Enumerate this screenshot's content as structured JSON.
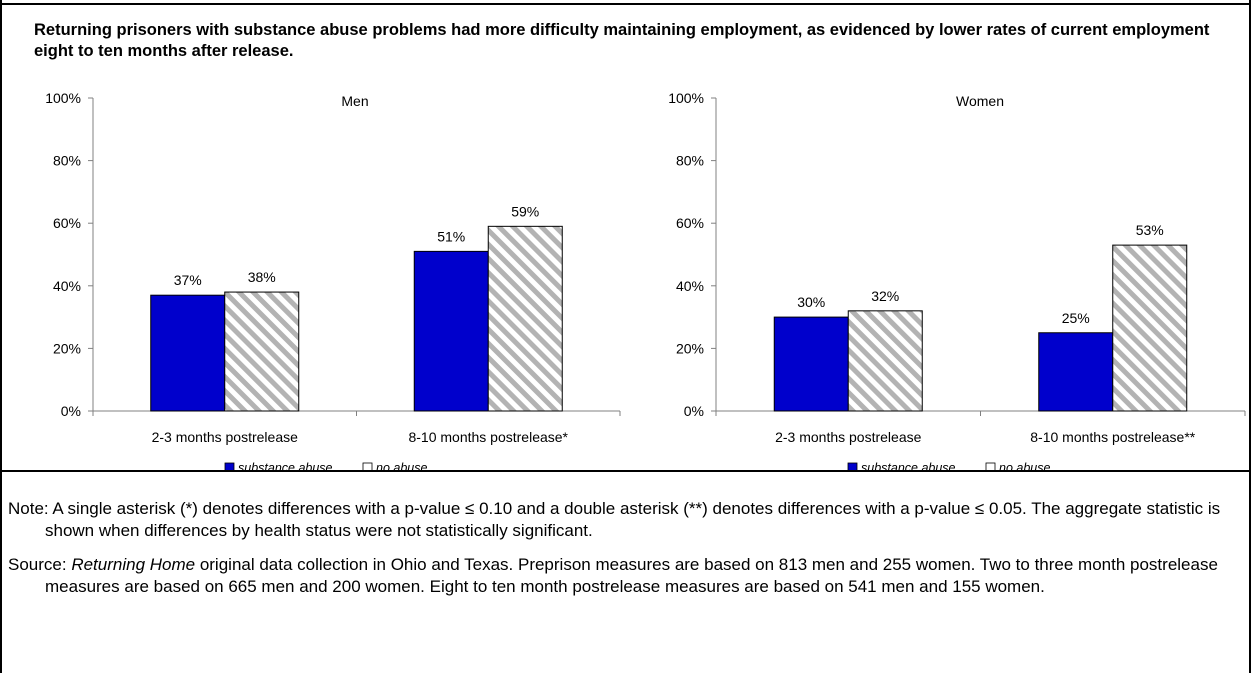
{
  "title": "Returning prisoners with substance abuse problems had more difficulty maintaining employment, as evidenced by lower rates of current employment eight to ten months after release.",
  "colors": {
    "substance": "#0000cc",
    "no_abuse_stripe": "#b3b3b3",
    "axis": "#808080"
  },
  "chart_data": [
    {
      "type": "bar",
      "title": "Men",
      "categories": [
        "2-3 months postrelease",
        "8-10 months postrelease*"
      ],
      "series": [
        {
          "name": "substance abuse",
          "values": [
            37,
            51
          ],
          "labels": [
            "37%",
            "51%"
          ]
        },
        {
          "name": "no abuse",
          "values": [
            38,
            59
          ],
          "labels": [
            "38%",
            "59%"
          ]
        }
      ],
      "ylim": [
        0,
        100
      ],
      "yticks": [
        "0%",
        "20%",
        "40%",
        "60%",
        "80%",
        "100%"
      ],
      "legend": "bottom",
      "grid": false
    },
    {
      "type": "bar",
      "title": "Women",
      "categories": [
        "2-3 months postrelease",
        "8-10 months postrelease**"
      ],
      "series": [
        {
          "name": "substance abuse",
          "values": [
            30,
            25
          ],
          "labels": [
            "30%",
            "25%"
          ]
        },
        {
          "name": "no abuse",
          "values": [
            32,
            53
          ],
          "labels": [
            "32%",
            "53%"
          ]
        }
      ],
      "ylim": [
        0,
        100
      ],
      "yticks": [
        "0%",
        "20%",
        "40%",
        "60%",
        "80%",
        "100%"
      ],
      "legend": "bottom",
      "grid": false
    }
  ],
  "notes": {
    "note": "Note:  A single asterisk (*) denotes differences with a p-value ≤ 0.10 and a double asterisk (**) denotes differences with a p-value ≤ 0.05.  The aggregate statistic is shown when differences by health status were not statistically significant.",
    "source_label": "Source: ",
    "source_italic": "Returning Home",
    "source_rest": " original data collection in Ohio and Texas.  Preprison measures are based on 813 men and 255 women.  Two to three month postrelease measures are based on 665 men and 200 women.  Eight to ten month postrelease measures are based on 541 men and 155 women."
  }
}
